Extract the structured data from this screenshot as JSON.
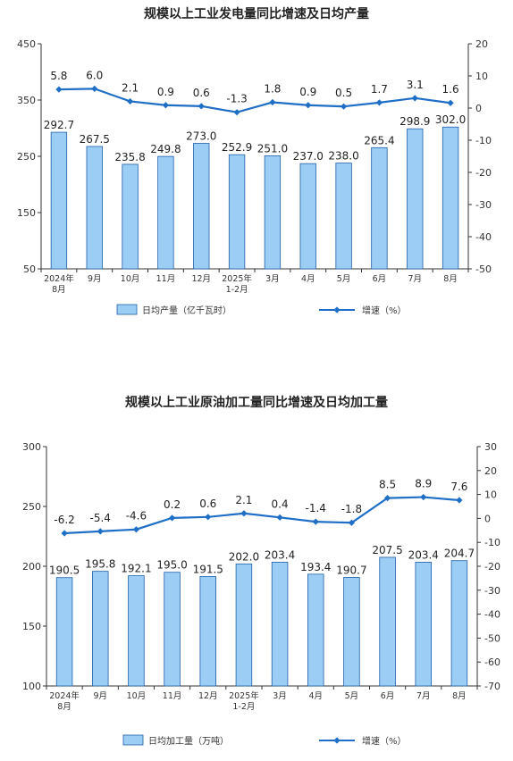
{
  "chart_data": [
    {
      "type": "bar+line",
      "title": "规模以上工业发电量同比增速及日均产量",
      "categories": [
        [
          "2024年",
          "8月"
        ],
        [
          "9月"
        ],
        [
          "10月"
        ],
        [
          "11月"
        ],
        [
          "12月"
        ],
        [
          "2025年",
          "1-2月"
        ],
        [
          "3月"
        ],
        [
          "4月"
        ],
        [
          "5月"
        ],
        [
          "6月"
        ],
        [
          "7月"
        ],
        [
          "8月"
        ]
      ],
      "series": [
        {
          "name": "日均产量（亿千瓦时）",
          "type": "bar",
          "axis": "left",
          "values": [
            292.7,
            267.5,
            235.8,
            249.8,
            273.0,
            252.9,
            251.0,
            237.0,
            238.0,
            265.4,
            298.9,
            302.0
          ],
          "labels": [
            "292.7",
            "267.5",
            "235.8",
            "249.8",
            "273.0",
            "252.9",
            "251.0",
            "237.0",
            "238.0",
            "265.4",
            "298.9",
            "302.0"
          ]
        },
        {
          "name": "增速（%）",
          "type": "line",
          "axis": "right",
          "values": [
            5.8,
            6.0,
            2.1,
            0.9,
            0.6,
            -1.3,
            1.8,
            0.9,
            0.5,
            1.7,
            3.1,
            1.6
          ],
          "labels": [
            "5.8",
            "6.0",
            "2.1",
            "0.9",
            "0.6",
            "-1.3",
            "1.8",
            "0.9",
            "0.5",
            "1.7",
            "3.1",
            "1.6"
          ]
        }
      ],
      "left_axis": {
        "min": 50,
        "max": 450,
        "ticks": [
          50,
          150,
          250,
          350,
          450
        ]
      },
      "right_axis": {
        "min": -50,
        "max": 20,
        "ticks": [
          20,
          10,
          0,
          -10,
          -20,
          -30,
          -40,
          -50
        ]
      },
      "legend": "bottom",
      "grid": false,
      "colors": {
        "bar": "#9ccdf5",
        "bar_edge": "#1f5fa8",
        "line": "#1f6fc6"
      }
    },
    {
      "type": "bar+line",
      "title": "规模以上工业原油加工量同比增速及日均加工量",
      "categories": [
        [
          "2024年",
          "8月"
        ],
        [
          "9月"
        ],
        [
          "10月"
        ],
        [
          "11月"
        ],
        [
          "12月"
        ],
        [
          "2025年",
          "1-2月"
        ],
        [
          "3月"
        ],
        [
          "4月"
        ],
        [
          "5月"
        ],
        [
          "6月"
        ],
        [
          "7月"
        ],
        [
          "8月"
        ]
      ],
      "series": [
        {
          "name": "日均加工量（万吨）",
          "type": "bar",
          "axis": "left",
          "values": [
            190.5,
            195.8,
            192.1,
            195.0,
            191.5,
            202.0,
            203.4,
            193.4,
            190.7,
            207.5,
            203.4,
            204.7
          ],
          "labels": [
            "190.5",
            "195.8",
            "192.1",
            "195.0",
            "191.5",
            "202.0",
            "203.4",
            "193.4",
            "190.7",
            "207.5",
            "203.4",
            "204.7"
          ]
        },
        {
          "name": "增速（%）",
          "type": "line",
          "axis": "right",
          "values": [
            -6.2,
            -5.4,
            -4.6,
            0.2,
            0.6,
            2.1,
            0.4,
            -1.4,
            -1.8,
            8.5,
            8.9,
            7.6
          ],
          "labels": [
            "-6.2",
            "-5.4",
            "-4.6",
            "0.2",
            "0.6",
            "2.1",
            "0.4",
            "-1.4",
            "-1.8",
            "8.5",
            "8.9",
            "7.6"
          ]
        }
      ],
      "left_axis": {
        "min": 100,
        "max": 300,
        "ticks": [
          100,
          150,
          200,
          250,
          300
        ]
      },
      "right_axis": {
        "min": -70,
        "max": 30,
        "ticks": [
          30,
          20,
          10,
          0,
          -10,
          -20,
          -30,
          -40,
          -50,
          -60,
          -70
        ]
      },
      "legend": "bottom",
      "grid": false,
      "colors": {
        "bar": "#9ccdf5",
        "bar_edge": "#1f5fa8",
        "line": "#1f6fc6"
      }
    }
  ]
}
